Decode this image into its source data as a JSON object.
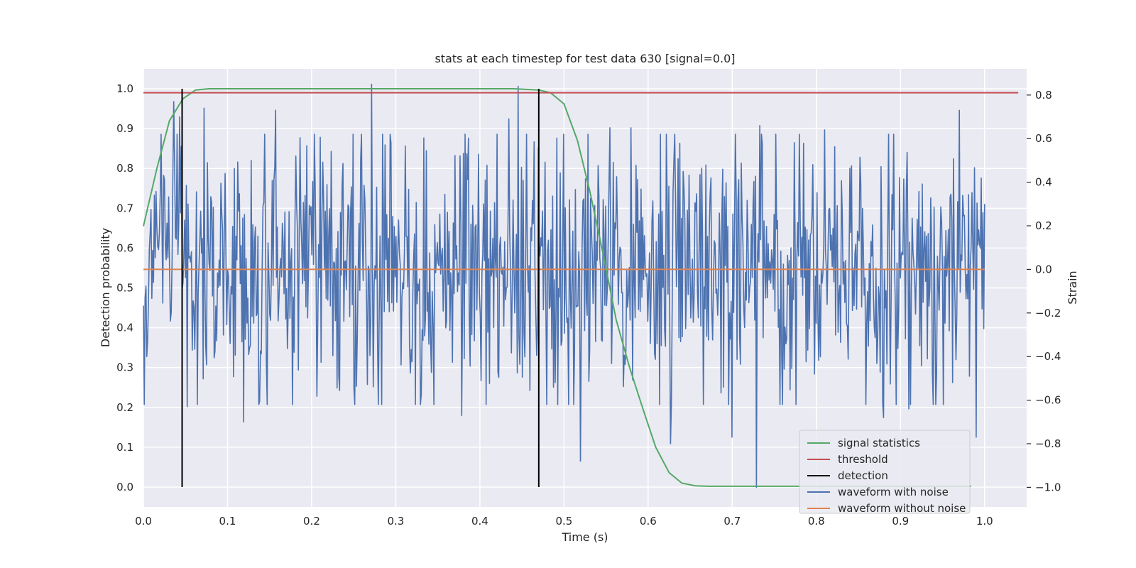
{
  "chart_data": {
    "type": "line",
    "title": "stats at each timestep for test data 630 [signal=0.0]",
    "xlabel": "Time (s)",
    "ylabel": "Detection probability",
    "y2label": "Strain",
    "xlim": [
      0.0,
      1.05
    ],
    "ylim": [
      -0.05,
      1.05
    ],
    "y2lim": [
      -1.09,
      0.92
    ],
    "xticks": [
      "0.0",
      "0.1",
      "0.2",
      "0.3",
      "0.4",
      "0.5",
      "0.6",
      "0.7",
      "0.8",
      "0.9",
      "1.0"
    ],
    "yticks": [
      "0.0",
      "0.1",
      "0.2",
      "0.3",
      "0.4",
      "0.5",
      "0.6",
      "0.7",
      "0.8",
      "0.9",
      "1.0"
    ],
    "y2ticks": [
      "−1.0",
      "−0.8",
      "−0.6",
      "−0.4",
      "−0.2",
      "0.0",
      "0.2",
      "0.4",
      "0.6",
      "0.8"
    ],
    "grid": true,
    "legend_position": "lower-right",
    "legend": [
      "signal statistics",
      "threshold",
      "detection",
      "waveform with noise",
      "waveform without noise"
    ],
    "colors": {
      "signal_statistics": "#55a868",
      "threshold": "#c44e52",
      "detection": "#000000",
      "waveform_with_noise": "#4c72b0",
      "waveform_without_noise": "#dd8452",
      "plot_background": "#eaeaf2",
      "grid": "#ffffff"
    },
    "signal_statistics": {
      "x": [
        0.0,
        0.016,
        0.031,
        0.047,
        0.062,
        0.078,
        0.094,
        0.2,
        0.3,
        0.4,
        0.44,
        0.47,
        0.484,
        0.5,
        0.516,
        0.531,
        0.547,
        0.562,
        0.578,
        0.594,
        0.609,
        0.625,
        0.64,
        0.656,
        0.672,
        0.7,
        0.8,
        0.9,
        0.984
      ],
      "y": [
        0.655,
        0.8,
        0.92,
        0.975,
        0.997,
        1.0,
        1.0,
        1.0,
        1.0,
        1.0,
        1.0,
        0.997,
        0.99,
        0.962,
        0.87,
        0.74,
        0.58,
        0.42,
        0.3,
        0.195,
        0.1,
        0.036,
        0.01,
        0.003,
        0.002,
        0.002,
        0.002,
        0.002,
        0.002
      ]
    },
    "threshold": {
      "x": [
        0.0,
        1.04
      ],
      "y": 0.99
    },
    "detections": [
      0.046,
      0.47
    ],
    "waveform_without_noise": {
      "x": [
        0.0,
        1.0
      ],
      "y": 0.0
    },
    "waveform_with_noise": {
      "x_range": [
        0.0,
        1.0
      ],
      "n_points": 1000,
      "noise_sigma": 0.3,
      "highlights": [
        {
          "x": 0.004,
          "y": -0.4
        },
        {
          "x": 0.036,
          "y": 0.77
        },
        {
          "x": 0.043,
          "y": 0.7
        },
        {
          "x": 0.052,
          "y": -0.63
        },
        {
          "x": 0.072,
          "y": 0.74
        },
        {
          "x": 0.119,
          "y": -0.7
        },
        {
          "x": 0.157,
          "y": 0.73
        },
        {
          "x": 0.271,
          "y": 0.85
        },
        {
          "x": 0.378,
          "y": -0.67
        },
        {
          "x": 0.434,
          "y": 0.69
        },
        {
          "x": 0.445,
          "y": 0.84
        },
        {
          "x": 0.52,
          "y": -0.88
        },
        {
          "x": 0.555,
          "y": 0.65
        },
        {
          "x": 0.58,
          "y": 0.65
        },
        {
          "x": 0.627,
          "y": -0.8
        },
        {
          "x": 0.7,
          "y": -0.77
        },
        {
          "x": 0.729,
          "y": -1.0
        },
        {
          "x": 0.733,
          "y": 0.66
        },
        {
          "x": 0.81,
          "y": 0.64
        },
        {
          "x": 0.88,
          "y": -0.68
        },
        {
          "x": 0.91,
          "y": -0.64
        },
        {
          "x": 0.97,
          "y": 0.73
        },
        {
          "x": 0.99,
          "y": -0.77
        }
      ]
    }
  }
}
